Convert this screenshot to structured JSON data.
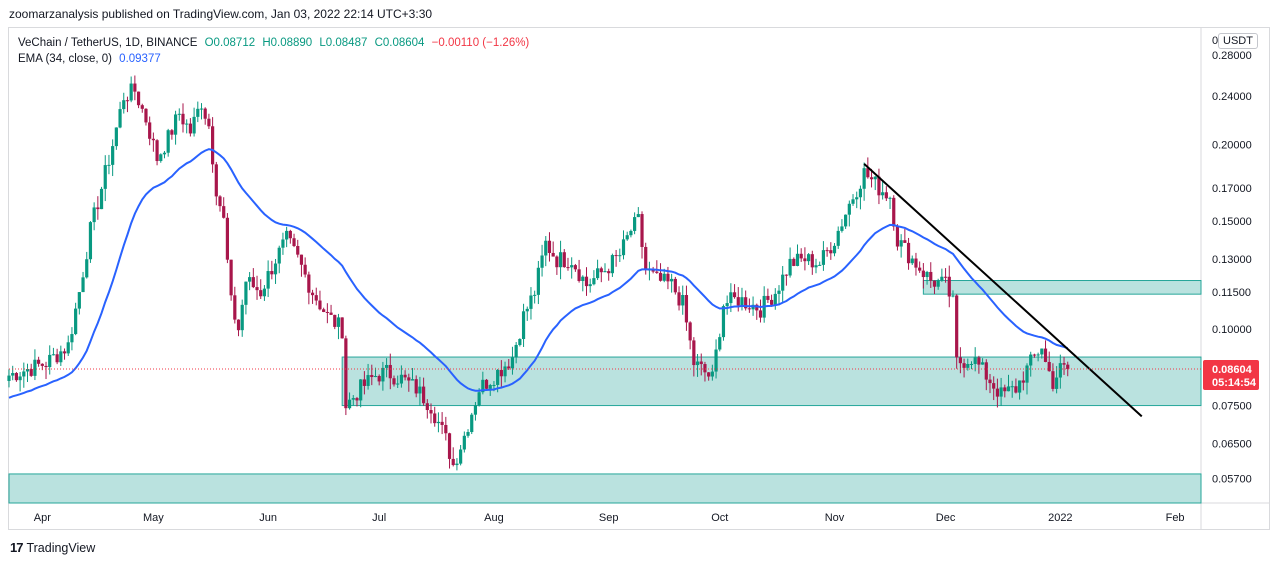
{
  "header": {
    "publish_line": "zoomarzanalysis published on TradingView.com, Jan 03, 2022 22:14 UTC+3:30"
  },
  "legend": {
    "symbol": "VeChain / TetherUS, 1D, BINANCE",
    "open": "O0.08712",
    "high": "H0.08890",
    "low": "L0.08487",
    "close": "C0.08604",
    "change": "−0.00110 (−1.26%)",
    "ema_label": "EMA (34, close, 0)",
    "ema_value": "0.09377"
  },
  "price_axis": {
    "currency": "USDT",
    "top_label": "0",
    "current_price": "0.08604",
    "countdown": "05:14:54"
  },
  "footer": {
    "brand": "TradingView"
  },
  "colors": {
    "up": "#089981",
    "down": "#a8164b",
    "ema": "#2962ff",
    "zone_fill": "#b2dfdb",
    "zone_stroke": "#26a69a",
    "trendline": "#000000",
    "current_price_label": "#f23645"
  },
  "chart_data": {
    "type": "candlestick",
    "y_scale": "log",
    "ylim": [
      0.052,
      0.31
    ],
    "x_range": [
      "2021-03-23",
      "2022-02-08"
    ],
    "y_ticks": [
      0.28,
      0.24,
      0.2,
      0.17,
      0.15,
      0.13,
      0.115,
      0.1,
      0.086,
      0.075,
      0.065,
      0.057
    ],
    "y_tick_labels": [
      "0.28000",
      "0.24000",
      "0.20000",
      "0.17000",
      "0.15000",
      "0.13000",
      "0.11500",
      "0.10000",
      "0.08604",
      "0.07500",
      "0.06500",
      "0.05700"
    ],
    "x_ticks": [
      {
        "label": "Apr",
        "date": "2021-04-01"
      },
      {
        "label": "May",
        "date": "2021-05-01"
      },
      {
        "label": "Jun",
        "date": "2021-06-01"
      },
      {
        "label": "Jul",
        "date": "2021-07-01"
      },
      {
        "label": "Aug",
        "date": "2021-08-01"
      },
      {
        "label": "Sep",
        "date": "2021-09-01"
      },
      {
        "label": "Oct",
        "date": "2021-10-01"
      },
      {
        "label": "Nov",
        "date": "2021-11-01"
      },
      {
        "label": "Dec",
        "date": "2021-12-01"
      },
      {
        "label": "2022",
        "date": "2022-01-01"
      },
      {
        "label": "Feb",
        "date": "2022-02-01"
      }
    ],
    "last_price": 0.08604,
    "zones": [
      {
        "from_date": "2021-06-21",
        "to_date": "2022-02-08",
        "low": 0.075,
        "high": 0.09
      },
      {
        "from_date": "2021-11-25",
        "to_date": "2022-02-08",
        "low": 0.114,
        "high": 0.12
      },
      {
        "from_date": "2021-03-23",
        "to_date": "2022-02-08",
        "low": 0.052,
        "high": 0.058
      }
    ],
    "trendline": {
      "start_date": "2021-11-09",
      "start_price": 0.186,
      "end_date": "2022-01-23",
      "end_price": 0.072
    },
    "ema_period": 34,
    "ema_last": 0.09377,
    "price_path": [
      {
        "date": "2021-03-23",
        "price": 0.084
      },
      {
        "date": "2021-03-28",
        "price": 0.086
      },
      {
        "date": "2021-04-02",
        "price": 0.088
      },
      {
        "date": "2021-04-08",
        "price": 0.094
      },
      {
        "date": "2021-04-11",
        "price": 0.115
      },
      {
        "date": "2021-04-14",
        "price": 0.145
      },
      {
        "date": "2021-04-17",
        "price": 0.17
      },
      {
        "date": "2021-04-20",
        "price": 0.2
      },
      {
        "date": "2021-04-23",
        "price": 0.24
      },
      {
        "date": "2021-04-26",
        "price": 0.245
      },
      {
        "date": "2021-04-29",
        "price": 0.22
      },
      {
        "date": "2021-05-02",
        "price": 0.19
      },
      {
        "date": "2021-05-05",
        "price": 0.205
      },
      {
        "date": "2021-05-08",
        "price": 0.225
      },
      {
        "date": "2021-05-11",
        "price": 0.21
      },
      {
        "date": "2021-05-14",
        "price": 0.235
      },
      {
        "date": "2021-05-16",
        "price": 0.215
      },
      {
        "date": "2021-05-18",
        "price": 0.17
      },
      {
        "date": "2021-05-20",
        "price": 0.15
      },
      {
        "date": "2021-05-22",
        "price": 0.11
      },
      {
        "date": "2021-05-24",
        "price": 0.1
      },
      {
        "date": "2021-05-26",
        "price": 0.12
      },
      {
        "date": "2021-05-30",
        "price": 0.115
      },
      {
        "date": "2021-06-03",
        "price": 0.13
      },
      {
        "date": "2021-06-06",
        "price": 0.14
      },
      {
        "date": "2021-06-09",
        "price": 0.13
      },
      {
        "date": "2021-06-13",
        "price": 0.115
      },
      {
        "date": "2021-06-17",
        "price": 0.105
      },
      {
        "date": "2021-06-21",
        "price": 0.1
      },
      {
        "date": "2021-06-22",
        "price": 0.075
      },
      {
        "date": "2021-06-26",
        "price": 0.08
      },
      {
        "date": "2021-06-30",
        "price": 0.084
      },
      {
        "date": "2021-07-03",
        "price": 0.085
      },
      {
        "date": "2021-07-07",
        "price": 0.083
      },
      {
        "date": "2021-07-11",
        "price": 0.08
      },
      {
        "date": "2021-07-15",
        "price": 0.075
      },
      {
        "date": "2021-07-19",
        "price": 0.066
      },
      {
        "date": "2021-07-21",
        "price": 0.06
      },
      {
        "date": "2021-07-24",
        "price": 0.067
      },
      {
        "date": "2021-07-28",
        "price": 0.08
      },
      {
        "date": "2021-08-02",
        "price": 0.085
      },
      {
        "date": "2021-08-06",
        "price": 0.09
      },
      {
        "date": "2021-08-09",
        "price": 0.105
      },
      {
        "date": "2021-08-12",
        "price": 0.115
      },
      {
        "date": "2021-08-15",
        "price": 0.138
      },
      {
        "date": "2021-08-18",
        "price": 0.13
      },
      {
        "date": "2021-08-22",
        "price": 0.13
      },
      {
        "date": "2021-08-26",
        "price": 0.118
      },
      {
        "date": "2021-08-31",
        "price": 0.125
      },
      {
        "date": "2021-09-04",
        "price": 0.132
      },
      {
        "date": "2021-09-07",
        "price": 0.145
      },
      {
        "date": "2021-09-09",
        "price": 0.15
      },
      {
        "date": "2021-09-11",
        "price": 0.125
      },
      {
        "date": "2021-09-14",
        "price": 0.12
      },
      {
        "date": "2021-09-18",
        "price": 0.118
      },
      {
        "date": "2021-09-21",
        "price": 0.11
      },
      {
        "date": "2021-09-24",
        "price": 0.088
      },
      {
        "date": "2021-09-29",
        "price": 0.083
      },
      {
        "date": "2021-10-02",
        "price": 0.11
      },
      {
        "date": "2021-10-06",
        "price": 0.112
      },
      {
        "date": "2021-10-12",
        "price": 0.108
      },
      {
        "date": "2021-10-16",
        "price": 0.115
      },
      {
        "date": "2021-10-20",
        "price": 0.128
      },
      {
        "date": "2021-10-24",
        "price": 0.13
      },
      {
        "date": "2021-10-28",
        "price": 0.128
      },
      {
        "date": "2021-11-01",
        "price": 0.14
      },
      {
        "date": "2021-11-05",
        "price": 0.16
      },
      {
        "date": "2021-11-09",
        "price": 0.18
      },
      {
        "date": "2021-11-13",
        "price": 0.17
      },
      {
        "date": "2021-11-16",
        "price": 0.165
      },
      {
        "date": "2021-11-18",
        "price": 0.14
      },
      {
        "date": "2021-11-22",
        "price": 0.13
      },
      {
        "date": "2021-11-27",
        "price": 0.12
      },
      {
        "date": "2021-12-01",
        "price": 0.118
      },
      {
        "date": "2021-12-03",
        "price": 0.11
      },
      {
        "date": "2021-12-04",
        "price": 0.088
      },
      {
        "date": "2021-12-08",
        "price": 0.09
      },
      {
        "date": "2021-12-12",
        "price": 0.084
      },
      {
        "date": "2021-12-16",
        "price": 0.078
      },
      {
        "date": "2021-12-20",
        "price": 0.08
      },
      {
        "date": "2021-12-24",
        "price": 0.088
      },
      {
        "date": "2021-12-27",
        "price": 0.094
      },
      {
        "date": "2021-12-28",
        "price": 0.088
      },
      {
        "date": "2021-12-30",
        "price": 0.082
      },
      {
        "date": "2022-01-01",
        "price": 0.086
      },
      {
        "date": "2022-01-03",
        "price": 0.086
      }
    ]
  }
}
